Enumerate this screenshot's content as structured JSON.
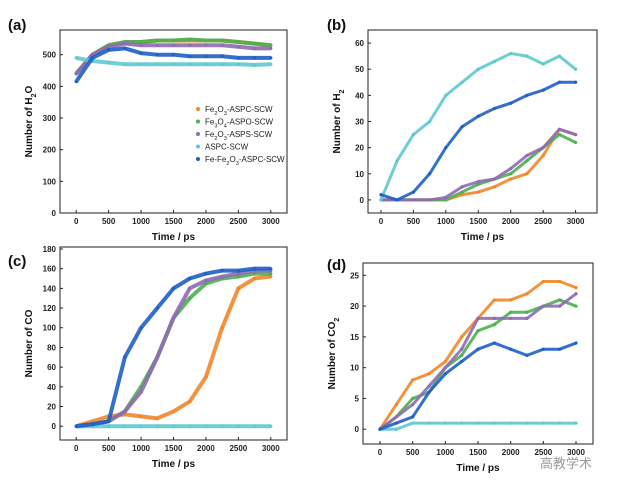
{
  "colors": {
    "orange": "#f0882a",
    "green": "#4caf50",
    "purple": "#8f6cb4",
    "cyan": "#5fc9cf",
    "blue": "#1f5fc8"
  },
  "legend": [
    "Fe2O3-ASPC-SCW",
    "Fe3O4-ASPO-SCW",
    "Fe2O3-ASPS-SCW",
    "ASPC-SCW",
    "Fe-Fe2O3-ASPC-SCW"
  ],
  "watermark": "高教学术",
  "chart_data": [
    {
      "panel": "(a)",
      "type": "scatter",
      "xlabel": "Time / ps",
      "ylabel": "Number of H2O",
      "xlim": [
        -250,
        3250
      ],
      "ylim": [
        0,
        578
      ],
      "xticks": [
        0,
        500,
        1000,
        1500,
        2000,
        2500,
        3000
      ],
      "yticks": [
        0,
        100,
        200,
        300,
        400,
        500
      ],
      "legend_placement": "center-right",
      "x": [
        0,
        250,
        500,
        750,
        1000,
        1250,
        1500,
        1750,
        2000,
        2250,
        2500,
        2750,
        3000
      ],
      "series": [
        {
          "name": "Fe2O3-ASPC-SCW",
          "color": "orange",
          "values": [
            440,
            500,
            530,
            540,
            540,
            545,
            545,
            545,
            545,
            545,
            540,
            535,
            530
          ]
        },
        {
          "name": "Fe3O4-ASPO-SCW",
          "color": "green",
          "values": [
            440,
            500,
            530,
            540,
            540,
            545,
            545,
            548,
            545,
            545,
            540,
            535,
            530
          ]
        },
        {
          "name": "Fe2O3-ASPS-SCW",
          "color": "purple",
          "values": [
            440,
            500,
            525,
            535,
            530,
            530,
            530,
            530,
            530,
            530,
            525,
            520,
            520
          ]
        },
        {
          "name": "ASPC-SCW",
          "color": "cyan",
          "values": [
            490,
            480,
            475,
            470,
            470,
            470,
            470,
            470,
            470,
            470,
            470,
            468,
            470
          ]
        },
        {
          "name": "Fe-Fe2O3-ASPC-SCW",
          "color": "blue",
          "values": [
            415,
            490,
            515,
            520,
            505,
            500,
            500,
            495,
            495,
            495,
            490,
            490,
            490
          ]
        }
      ]
    },
    {
      "panel": "(b)",
      "type": "scatter",
      "xlabel": "Time / ps",
      "ylabel": "Number of H2",
      "xlim": [
        -200,
        3330
      ],
      "ylim": [
        -5,
        65
      ],
      "xticks": [
        0,
        500,
        1000,
        1500,
        2000,
        2500,
        3000
      ],
      "yticks": [
        0,
        10,
        20,
        30,
        40,
        50,
        60
      ],
      "x": [
        0,
        250,
        500,
        750,
        1000,
        1250,
        1500,
        1750,
        2000,
        2250,
        2500,
        2750,
        3000
      ],
      "series": [
        {
          "name": "Fe2O3-ASPC-SCW",
          "color": "orange",
          "values": [
            0,
            0,
            0,
            0,
            0,
            2,
            3,
            5,
            8,
            10,
            17,
            27,
            25
          ]
        },
        {
          "name": "Fe3O4-ASPO-SCW",
          "color": "green",
          "values": [
            0,
            0,
            0,
            0,
            0,
            3,
            6,
            8,
            10,
            15,
            20,
            25,
            22
          ]
        },
        {
          "name": "Fe2O3-ASPS-SCW",
          "color": "purple",
          "values": [
            0,
            0,
            0,
            0,
            1,
            5,
            7,
            8,
            12,
            17,
            20,
            27,
            25
          ]
        },
        {
          "name": "ASPC-SCW",
          "color": "cyan",
          "values": [
            0,
            15,
            25,
            30,
            40,
            45,
            50,
            53,
            56,
            55,
            52,
            55,
            50
          ]
        },
        {
          "name": "Fe-Fe2O3-ASPC-SCW",
          "color": "blue",
          "values": [
            2,
            0,
            3,
            10,
            20,
            28,
            32,
            35,
            37,
            40,
            42,
            45,
            45
          ]
        }
      ]
    },
    {
      "panel": "(c)",
      "type": "scatter",
      "xlabel": "Time / ps",
      "ylabel": "Number of CO",
      "xlim": [
        -250,
        3250
      ],
      "ylim": [
        -14,
        182
      ],
      "xticks": [
        0,
        500,
        1000,
        1500,
        2000,
        2500,
        3000
      ],
      "yticks": [
        0,
        20,
        40,
        60,
        80,
        100,
        120,
        140,
        160,
        180
      ],
      "x": [
        0,
        250,
        500,
        750,
        1000,
        1250,
        1500,
        1750,
        2000,
        2250,
        2500,
        2750,
        3000
      ],
      "series": [
        {
          "name": "Fe2O3-ASPC-SCW",
          "color": "orange",
          "values": [
            0,
            5,
            10,
            12,
            10,
            8,
            15,
            25,
            50,
            100,
            140,
            150,
            152
          ]
        },
        {
          "name": "Fe3O4-ASPO-SCW",
          "color": "green",
          "values": [
            0,
            2,
            5,
            15,
            40,
            70,
            110,
            130,
            145,
            150,
            152,
            155,
            155
          ]
        },
        {
          "name": "Fe2O3-ASPS-SCW",
          "color": "purple",
          "values": [
            0,
            2,
            5,
            15,
            35,
            70,
            110,
            140,
            148,
            152,
            155,
            158,
            158
          ]
        },
        {
          "name": "ASPC-SCW",
          "color": "cyan",
          "values": [
            0,
            0,
            0,
            0,
            0,
            0,
            0,
            0,
            0,
            0,
            0,
            0,
            0
          ]
        },
        {
          "name": "Fe-Fe2O3-ASPC-SCW",
          "color": "blue",
          "values": [
            0,
            2,
            5,
            70,
            100,
            120,
            140,
            150,
            155,
            158,
            158,
            160,
            160
          ]
        }
      ]
    },
    {
      "panel": "(d)",
      "type": "scatter",
      "xlabel": "Time / ps",
      "ylabel": "Number of CO2",
      "xlim": [
        -260,
        3260
      ],
      "ylim": [
        -2.4,
        27
      ],
      "xticks": [
        0,
        500,
        1000,
        1500,
        2000,
        2500,
        3000
      ],
      "yticks": [
        0,
        5,
        10,
        15,
        20,
        25
      ],
      "x": [
        0,
        250,
        500,
        750,
        1000,
        1250,
        1500,
        1750,
        2000,
        2250,
        2500,
        2750,
        3000
      ],
      "series": [
        {
          "name": "Fe2O3-ASPC-SCW",
          "color": "orange",
          "values": [
            0,
            4,
            8,
            9,
            11,
            15,
            18,
            21,
            21,
            22,
            24,
            24,
            23
          ]
        },
        {
          "name": "Fe3O4-ASPO-SCW",
          "color": "green",
          "values": [
            0,
            2,
            5,
            6,
            10,
            12,
            16,
            17,
            19,
            19,
            20,
            21,
            20
          ]
        },
        {
          "name": "Fe2O3-ASPS-SCW",
          "color": "purple",
          "values": [
            0,
            2,
            4,
            7,
            10,
            13,
            18,
            18,
            18,
            18,
            20,
            20,
            22
          ]
        },
        {
          "name": "ASPC-SCW",
          "color": "cyan",
          "values": [
            0,
            0,
            1,
            1,
            1,
            1,
            1,
            1,
            1,
            1,
            1,
            1,
            1
          ]
        },
        {
          "name": "Fe-Fe2O3-ASPC-SCW",
          "color": "blue",
          "values": [
            0,
            1,
            2,
            6,
            9,
            11,
            13,
            14,
            13,
            12,
            13,
            13,
            14
          ]
        }
      ]
    }
  ]
}
